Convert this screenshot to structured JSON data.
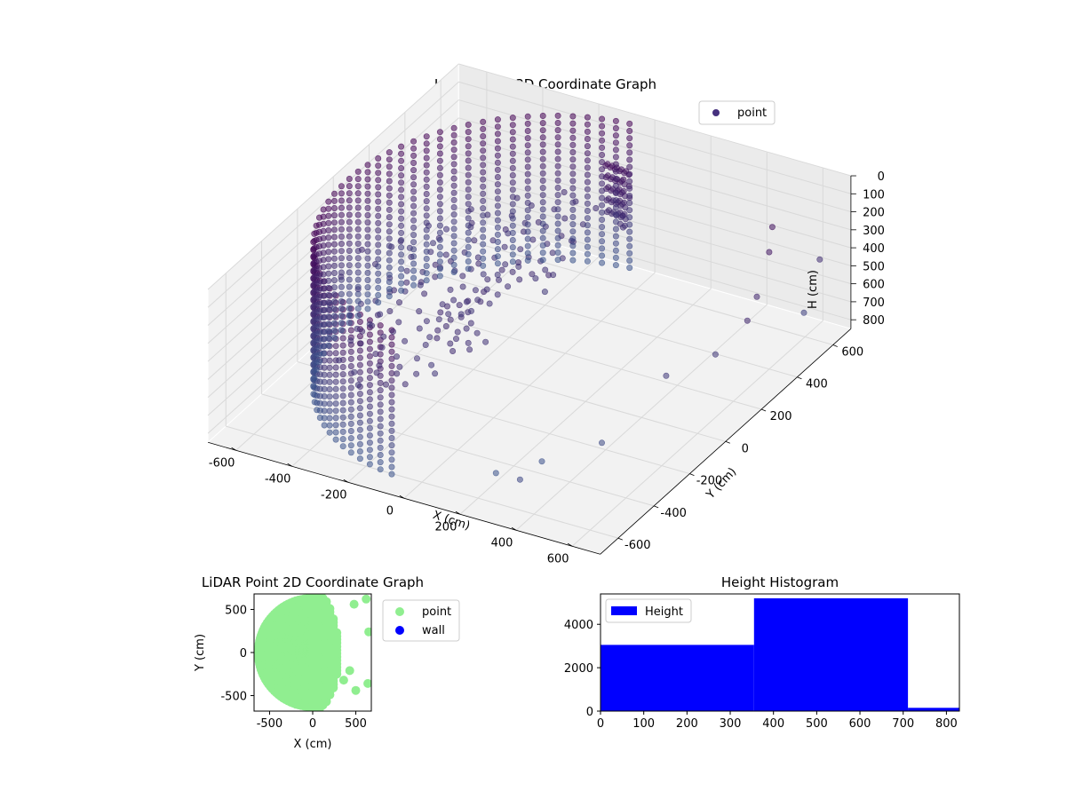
{
  "chart_data": [
    {
      "id": "chart3d",
      "type": "scatter",
      "title": "LiDAR Point 3D Coordinate Graph",
      "xlabel": "X (cm)",
      "ylabel": "Y (cm)",
      "zlabel": "H (cm)",
      "xlim": [
        -700,
        700
      ],
      "ylim": [
        -700,
        700
      ],
      "zlim": [
        0,
        850
      ],
      "z_inverted": true,
      "grid": true,
      "legend_position": "upper-right",
      "x_ticks": [
        -600,
        -400,
        -200,
        0,
        200,
        400,
        600
      ],
      "y_ticks": [
        -600,
        -400,
        -200,
        0,
        200,
        400,
        600
      ],
      "z_ticks": [
        0,
        100,
        200,
        300,
        400,
        500,
        600,
        700,
        800
      ],
      "series": [
        {
          "name": "point",
          "color": "#46317e",
          "description_shape": "partial cylindrical wall of radius ~650 cm, heights 0-800 cm",
          "wall_radius": 650,
          "wall_angle_range_deg": [
            95,
            265
          ],
          "height_range": [
            0,
            800
          ],
          "outliers": [
            [
              560,
              480,
              150
            ],
            [
              600,
              400,
              200
            ],
            [
              620,
              300,
              350
            ],
            [
              650,
              200,
              380
            ],
            [
              600,
              100,
              500
            ],
            [
              520,
              -50,
              520
            ],
            [
              300,
              -400,
              780
            ],
            [
              450,
              -300,
              700
            ],
            [
              200,
              -500,
              800
            ],
            [
              350,
              -600,
              680
            ],
            [
              640,
              620,
              420
            ],
            [
              660,
              500,
              600
            ]
          ]
        }
      ]
    },
    {
      "id": "chart2d",
      "type": "scatter",
      "title": "LiDAR Point 2D Coordinate Graph",
      "xlabel": "X (cm)",
      "ylabel": "Y (cm)",
      "xlim": [
        -680,
        680
      ],
      "ylim": [
        -680,
        680
      ],
      "x_ticks": [
        -500,
        0,
        500
      ],
      "y_ticks": [
        -500,
        0,
        500
      ],
      "legend_position": "outside-right",
      "series": [
        {
          "name": "point",
          "color": "#90ee90",
          "description_shape": "filled half-disc of radius ~650 cm on negative-x side",
          "extra_points": [
            [
              620,
              620
            ],
            [
              480,
              560
            ],
            [
              650,
              240
            ],
            [
              430,
              -210
            ],
            [
              360,
              -320
            ],
            [
              500,
              -440
            ],
            [
              640,
              -360
            ]
          ]
        },
        {
          "name": "wall",
          "color": "#0000ff",
          "points": []
        }
      ]
    },
    {
      "id": "hist",
      "type": "bar",
      "title": "Height Histogram",
      "xlim": [
        0,
        830
      ],
      "ylim": [
        0,
        5400
      ],
      "x_ticks": [
        0,
        100,
        200,
        300,
        400,
        500,
        600,
        700,
        800
      ],
      "y_ticks": [
        0,
        2000,
        4000
      ],
      "legend_position": "upper-left",
      "color": "#0000ff",
      "series": [
        {
          "name": "Height",
          "bins": [
            [
              0,
              355,
              3050
            ],
            [
              355,
              711,
              5200
            ],
            [
              711,
              830,
              150
            ]
          ]
        }
      ]
    }
  ]
}
